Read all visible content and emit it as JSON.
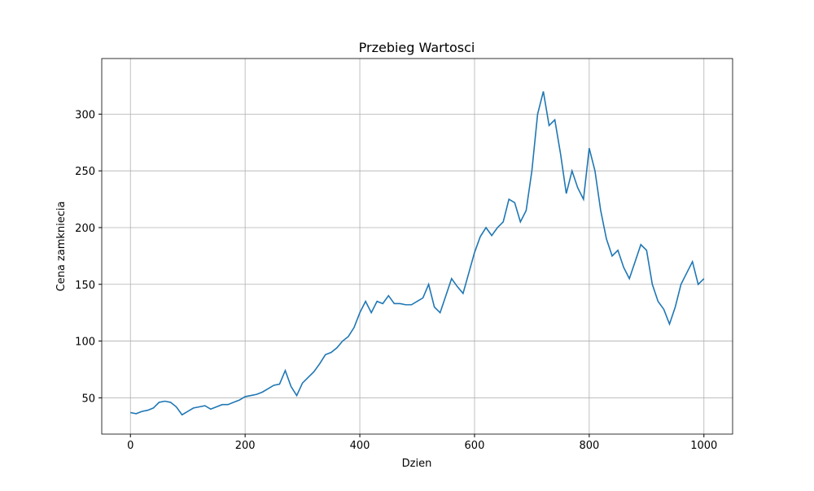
{
  "chart_data": {
    "type": "line",
    "title": "Przebieg Wartosci",
    "x_label": "Dzien",
    "y_label": "Cena zamkniecia",
    "x": [
      0,
      10,
      20,
      30,
      40,
      50,
      60,
      70,
      80,
      90,
      100,
      110,
      120,
      130,
      140,
      150,
      160,
      170,
      180,
      190,
      200,
      210,
      220,
      230,
      240,
      250,
      260,
      270,
      280,
      290,
      300,
      310,
      320,
      330,
      340,
      350,
      360,
      370,
      380,
      390,
      400,
      410,
      420,
      430,
      440,
      450,
      460,
      470,
      480,
      490,
      500,
      510,
      520,
      530,
      540,
      550,
      560,
      570,
      580,
      590,
      600,
      610,
      620,
      630,
      640,
      650,
      660,
      670,
      680,
      690,
      700,
      710,
      720,
      730,
      740,
      750,
      760,
      770,
      780,
      790,
      800,
      810,
      820,
      830,
      840,
      850,
      860,
      870,
      880,
      890,
      900,
      910,
      920,
      930,
      940,
      950,
      960,
      970,
      980,
      990,
      1000
    ],
    "series": [
      {
        "color": "#1f77b4",
        "values": [
          37,
          36,
          38,
          39,
          41,
          46,
          47,
          46,
          42,
          35,
          38,
          41,
          42,
          43,
          40,
          42,
          44,
          44,
          46,
          48,
          51,
          52,
          53,
          55,
          58,
          61,
          62,
          74,
          60,
          52,
          63,
          68,
          73,
          80,
          88,
          90,
          94,
          100,
          104,
          112,
          125,
          135,
          125,
          135,
          133,
          140,
          133,
          133,
          132,
          132,
          135,
          138,
          150,
          130,
          125,
          140,
          155,
          148,
          142,
          160,
          178,
          192,
          200,
          193,
          200,
          205,
          225,
          222,
          205,
          215,
          250,
          300,
          320,
          290,
          295,
          265,
          230,
          250,
          235,
          225,
          270,
          250,
          215,
          190,
          175,
          180,
          165,
          155,
          170,
          185,
          180,
          150,
          135,
          128,
          115,
          130,
          150,
          160,
          170,
          150,
          155
        ]
      }
    ],
    "xlim": [
      -50,
      1050
    ],
    "ylim": [
      18,
      349
    ],
    "xticks": [
      0,
      200,
      400,
      600,
      800,
      1000
    ],
    "yticks": [
      50,
      100,
      150,
      200,
      250,
      300
    ],
    "grid": true
  }
}
